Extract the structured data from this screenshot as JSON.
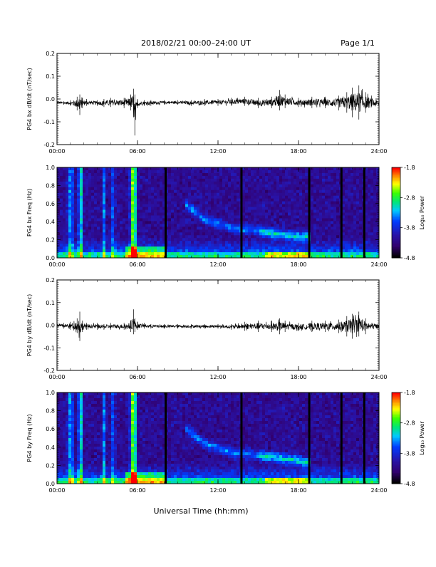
{
  "header": {
    "title": "2018/02/21  00:00–24:00 UT",
    "page": "Page 1/1"
  },
  "footer": {
    "xlabel": "Universal Time (hh:mm)"
  },
  "colors": {
    "background": "#ffffff",
    "trace": "#000000",
    "spectrogram_background": "#2a0a6e"
  },
  "chart_data": [
    {
      "type": "line",
      "ylabel": "PG4 bx dB/dt (nT/sec)",
      "x_ticks": [
        "00:00",
        "06:00",
        "12:00",
        "18:00",
        "24:00"
      ],
      "xlim_hours": [
        0,
        24
      ],
      "y_ticks": [
        "0.2",
        "0.1",
        "0.0",
        "-0.1",
        "-0.2"
      ],
      "ylim": [
        -0.2,
        0.2
      ],
      "series": [
        {
          "x_hours": [
            0,
            0.5,
            1.0,
            1.5,
            1.7,
            1.9,
            2.2,
            3.0,
            3.5,
            4.0,
            5.0,
            5.5,
            5.7,
            5.8,
            6.0,
            6.5,
            7.0,
            8.0,
            9.0,
            10.0,
            11.0,
            12.0,
            13.0,
            14.0,
            15.0,
            16.0,
            16.6,
            17.0,
            18.0,
            19.0,
            20.0,
            21.0,
            21.6,
            22.0,
            22.5,
            23.0,
            24.0
          ],
          "upper": [
            -0.005,
            -0.01,
            -0.005,
            0.01,
            0.02,
            0.005,
            0.0,
            -0.005,
            0.0,
            0.005,
            0.005,
            0.02,
            0.045,
            0.02,
            0.0,
            -0.005,
            -0.005,
            -0.005,
            -0.005,
            -0.005,
            0.0,
            0.0,
            0.005,
            0.01,
            0.005,
            0.01,
            0.04,
            0.02,
            0.005,
            0.01,
            0.01,
            0.015,
            0.03,
            0.05,
            0.06,
            0.03,
            0.0
          ],
          "lower": [
            -0.025,
            -0.025,
            -0.03,
            -0.05,
            -0.07,
            -0.04,
            -0.03,
            -0.03,
            -0.035,
            -0.035,
            -0.04,
            -0.05,
            -0.08,
            -0.16,
            -0.04,
            -0.03,
            -0.03,
            -0.025,
            -0.025,
            -0.03,
            -0.03,
            -0.03,
            -0.03,
            -0.03,
            -0.04,
            -0.04,
            -0.05,
            -0.04,
            -0.035,
            -0.04,
            -0.04,
            -0.05,
            -0.06,
            -0.08,
            -0.09,
            -0.06,
            -0.04
          ]
        }
      ]
    },
    {
      "type": "heatmap",
      "ylabel": "PG4 bx Freq (Hz)",
      "x_ticks": [
        "00:00",
        "06:00",
        "12:00",
        "18:00",
        "24:00"
      ],
      "xlim_hours": [
        0,
        24
      ],
      "y_ticks": [
        "1.0",
        "0.8",
        "0.6",
        "0.4",
        "0.2",
        "0.0"
      ],
      "ylim": [
        0,
        1.0
      ],
      "colorbar": {
        "label": "Log₁₀ Power",
        "ticks": [
          "-1.8",
          "-2.8",
          "-3.8",
          "-4.8"
        ],
        "range": [
          -4.8,
          -1.8
        ],
        "colors": [
          "#000000",
          "#4b0082",
          "#0000ff",
          "#00ffff",
          "#00ff00",
          "#ffff00",
          "#ff8000",
          "#ff0000"
        ]
      },
      "bright_columns_hours": [
        1.75,
        5.6,
        5.8
      ],
      "medium_columns_hours": [
        0.9,
        1.1,
        3.5,
        4.2
      ],
      "gap_columns_hours": [
        8.1,
        13.75,
        18.8,
        21.2,
        22.9
      ],
      "band_center_hz": [
        {
          "t": 9.5,
          "f": 0.6
        },
        {
          "t": 11,
          "f": 0.42
        },
        {
          "t": 13,
          "f": 0.33
        },
        {
          "t": 15,
          "f": 0.3
        },
        {
          "t": 16.5,
          "f": 0.26
        },
        {
          "t": 18,
          "f": 0.24
        },
        {
          "t": 19,
          "f": 0.22
        }
      ]
    },
    {
      "type": "line",
      "ylabel": "PG4 by dB/dt (nT/sec)",
      "x_ticks": [
        "00:00",
        "06:00",
        "12:00",
        "18:00",
        "24:00"
      ],
      "xlim_hours": [
        0,
        24
      ],
      "y_ticks": [
        "0.2",
        "0.1",
        "0.0",
        "-0.1",
        "-0.2"
      ],
      "ylim": [
        -0.2,
        0.2
      ],
      "series": [
        {
          "x_hours": [
            0,
            0.5,
            1.0,
            1.5,
            1.7,
            1.9,
            2.2,
            3.0,
            3.5,
            4.0,
            5.0,
            5.5,
            5.7,
            5.8,
            6.0,
            6.5,
            7.0,
            8.0,
            9.0,
            10.0,
            11.0,
            12.0,
            13.0,
            14.0,
            15.0,
            16.0,
            16.6,
            17.0,
            18.0,
            19.0,
            20.0,
            21.0,
            21.6,
            22.0,
            22.5,
            23.0,
            24.0
          ],
          "upper": [
            0.01,
            0.01,
            0.015,
            0.03,
            0.06,
            0.02,
            0.01,
            0.01,
            0.005,
            0.01,
            0.01,
            0.02,
            0.07,
            0.03,
            0.015,
            0.01,
            0.005,
            0.005,
            0.005,
            0.005,
            0.005,
            0.005,
            0.005,
            0.015,
            0.02,
            0.02,
            0.03,
            0.02,
            0.01,
            0.02,
            0.02,
            0.025,
            0.04,
            0.05,
            0.06,
            0.03,
            0.01
          ],
          "lower": [
            -0.015,
            -0.015,
            -0.02,
            -0.035,
            -0.07,
            -0.03,
            -0.02,
            -0.02,
            -0.02,
            -0.02,
            -0.02,
            -0.03,
            -0.04,
            -0.03,
            -0.02,
            -0.015,
            -0.015,
            -0.015,
            -0.015,
            -0.015,
            -0.015,
            -0.015,
            -0.02,
            -0.025,
            -0.03,
            -0.03,
            -0.04,
            -0.03,
            -0.025,
            -0.03,
            -0.03,
            -0.035,
            -0.05,
            -0.06,
            -0.05,
            -0.04,
            -0.02
          ]
        }
      ]
    },
    {
      "type": "heatmap",
      "ylabel": "PG4 by Freq (Hz)",
      "x_ticks": [
        "00:00",
        "06:00",
        "12:00",
        "18:00",
        "24:00"
      ],
      "xlim_hours": [
        0,
        24
      ],
      "y_ticks": [
        "1.0",
        "0.8",
        "0.6",
        "0.4",
        "0.2",
        "0.0"
      ],
      "ylim": [
        0,
        1.0
      ],
      "colorbar": {
        "label": "Log₁₀ Power",
        "ticks": [
          "-1.8",
          "-2.8",
          "-3.8",
          "-4.8"
        ],
        "range": [
          -4.8,
          -1.8
        ],
        "colors": [
          "#000000",
          "#4b0082",
          "#0000ff",
          "#00ffff",
          "#00ff00",
          "#ffff00",
          "#ff8000",
          "#ff0000"
        ]
      },
      "bright_columns_hours": [
        1.75,
        5.6,
        5.8
      ],
      "medium_columns_hours": [
        0.9,
        1.1,
        3.5,
        4.2
      ],
      "gap_columns_hours": [
        8.1,
        13.75,
        18.8,
        21.2,
        22.9
      ],
      "band_center_hz": [
        {
          "t": 9.5,
          "f": 0.62
        },
        {
          "t": 11,
          "f": 0.44
        },
        {
          "t": 13,
          "f": 0.34
        },
        {
          "t": 15,
          "f": 0.31
        },
        {
          "t": 16.5,
          "f": 0.28
        },
        {
          "t": 18,
          "f": 0.25
        },
        {
          "t": 19,
          "f": 0.23
        }
      ]
    }
  ]
}
